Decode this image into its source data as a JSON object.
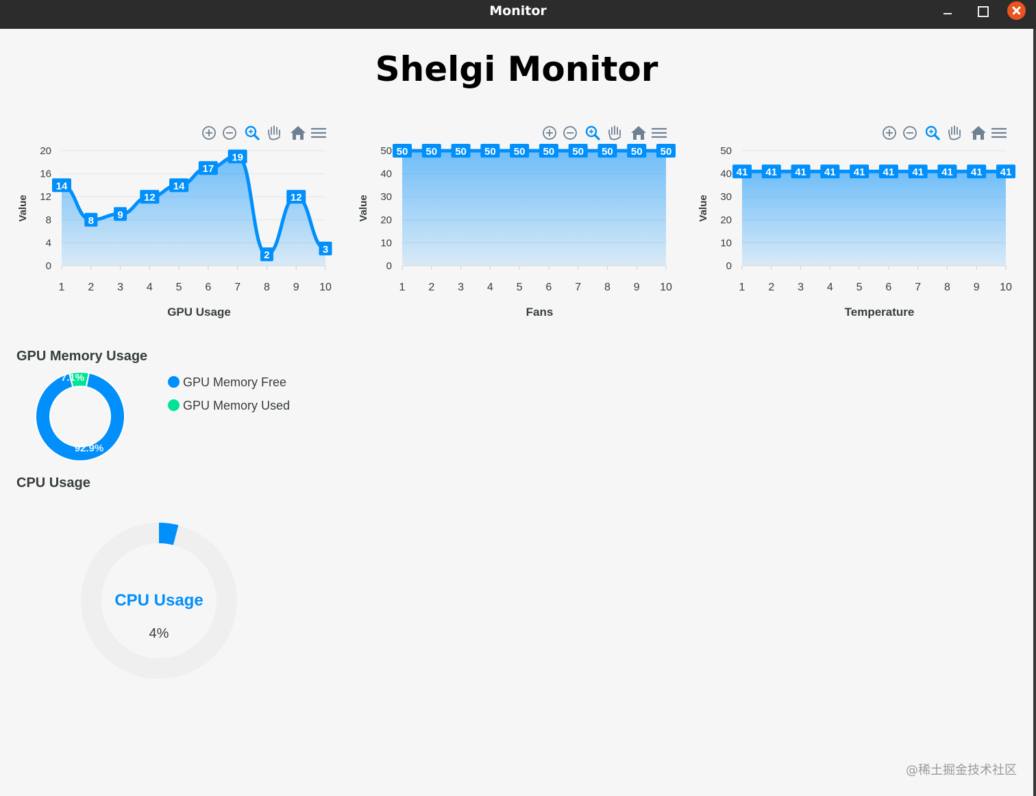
{
  "window": {
    "title": "Monitor"
  },
  "page": {
    "title": "Shelgi Monitor"
  },
  "toolbar_icons": [
    "zoom-in-icon",
    "zoom-out-icon",
    "zoom-select-icon",
    "pan-hand-icon",
    "home-reset-icon",
    "menu-icon"
  ],
  "chart_data": [
    {
      "type": "area",
      "title": "GPU Usage",
      "xlabel": "GPU Usage",
      "ylabel": "Value",
      "categories": [
        "1",
        "2",
        "3",
        "4",
        "5",
        "6",
        "7",
        "8",
        "9",
        "10"
      ],
      "values": [
        14,
        8,
        9,
        12,
        14,
        17,
        19,
        2,
        12,
        3
      ],
      "yticks": [
        "0",
        "4",
        "8",
        "12",
        "16",
        "20"
      ],
      "ylim": [
        0,
        20
      ],
      "curve": "smooth",
      "data_labels": true,
      "grid": true,
      "color": "#008ffb"
    },
    {
      "type": "area",
      "title": "Fans",
      "xlabel": "Fans",
      "ylabel": "Value",
      "categories": [
        "1",
        "2",
        "3",
        "4",
        "5",
        "6",
        "7",
        "8",
        "9",
        "10"
      ],
      "values": [
        50,
        50,
        50,
        50,
        50,
        50,
        50,
        50,
        50,
        50
      ],
      "yticks": [
        "0",
        "10",
        "20",
        "30",
        "40",
        "50"
      ],
      "ylim": [
        0,
        50
      ],
      "data_labels": true,
      "grid": true,
      "color": "#008ffb"
    },
    {
      "type": "area",
      "title": "Temperature",
      "xlabel": "Temperature",
      "ylabel": "Value",
      "categories": [
        "1",
        "2",
        "3",
        "4",
        "5",
        "6",
        "7",
        "8",
        "9",
        "10"
      ],
      "values": [
        41,
        41,
        41,
        41,
        41,
        41,
        41,
        41,
        41,
        41
      ],
      "yticks": [
        "0",
        "10",
        "20",
        "30",
        "40",
        "50"
      ],
      "ylim": [
        0,
        50
      ],
      "data_labels": true,
      "grid": true,
      "color": "#008ffb"
    },
    {
      "type": "pie",
      "variant": "donut",
      "title": "GPU Memory Usage",
      "labels": [
        "GPU Memory Free",
        "GPU Memory Used"
      ],
      "values": [
        92.9,
        7.1
      ],
      "value_labels": [
        "92.9%",
        "7.1%"
      ],
      "colors": [
        "#008ffb",
        "#00e396"
      ],
      "legend": "right"
    },
    {
      "type": "radialBar",
      "title": "CPU Usage",
      "label": "CPU Usage",
      "value": 4,
      "value_label": "4%",
      "color": "#008ffb"
    }
  ],
  "watermark": "@稀土掘金技术社区"
}
